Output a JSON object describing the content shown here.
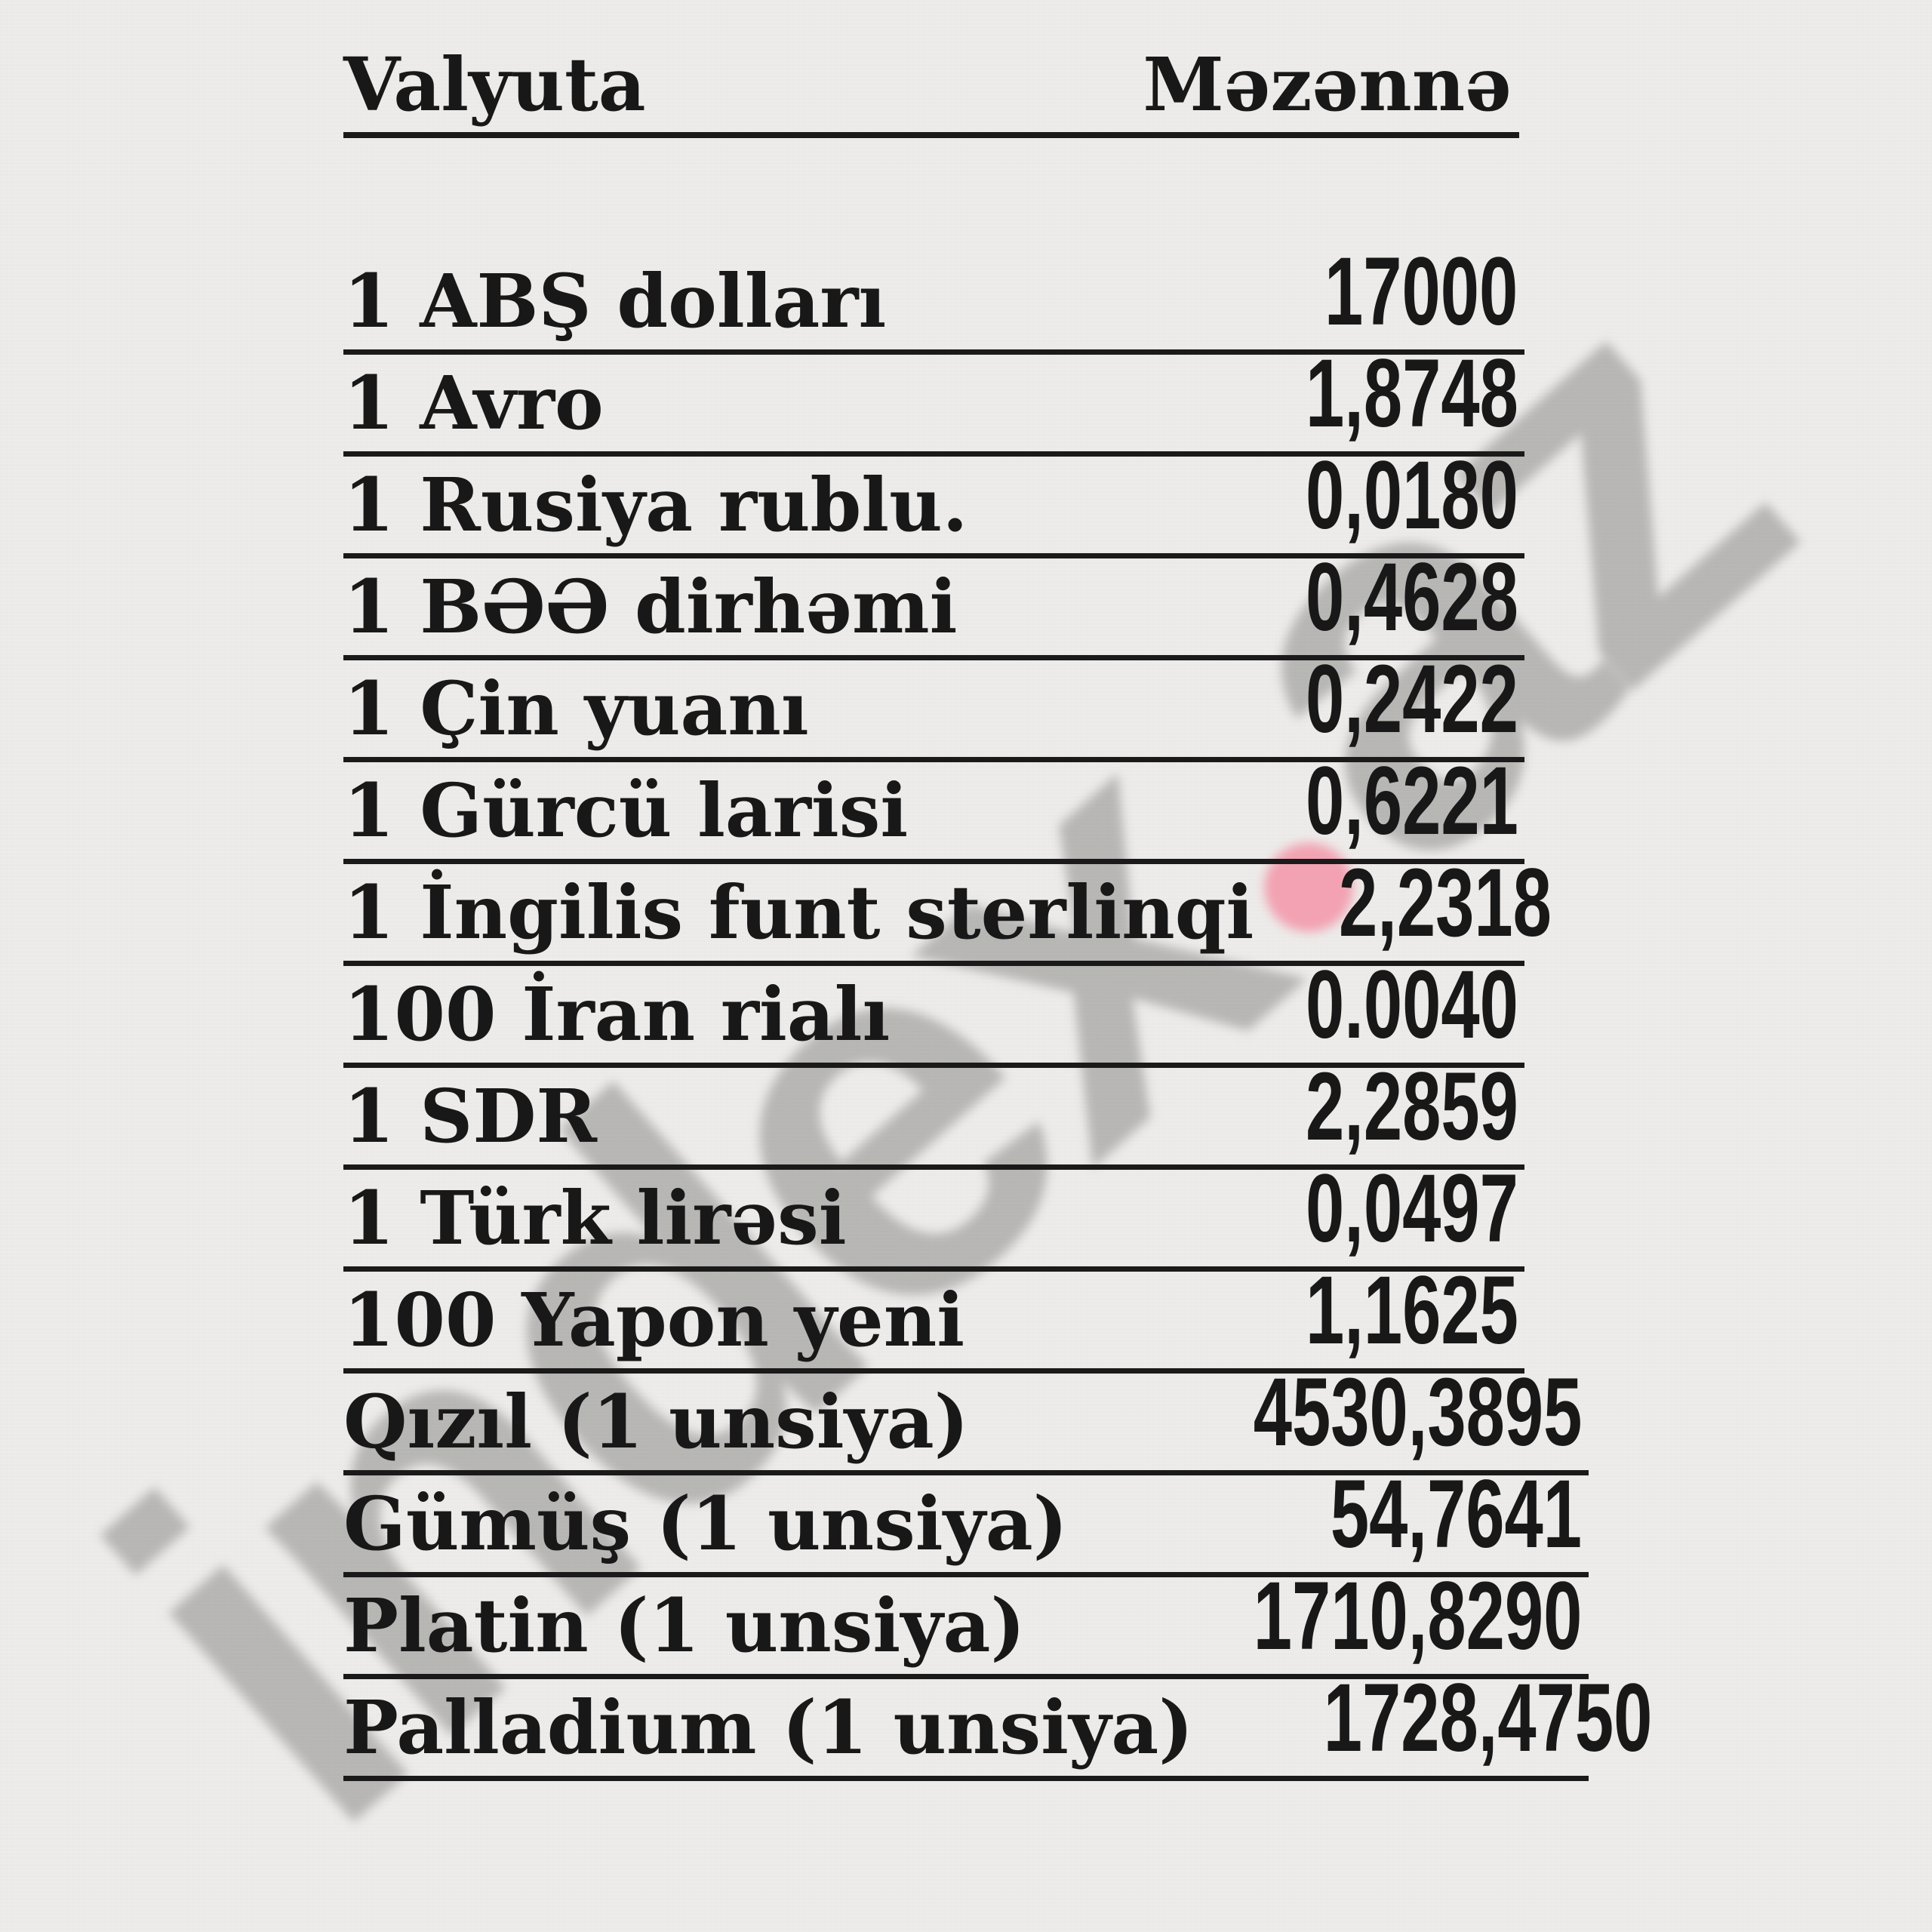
{
  "page": {
    "background": "#eeedeb",
    "text_color": "#1a1a1a"
  },
  "watermark": {
    "text_before_dot": "index",
    "text_after_dot": "az",
    "color": "#8c8c89",
    "dot_color": "#f2a2b2"
  },
  "table": {
    "header": {
      "currency": "Valyuta",
      "rate": "Məzənnə"
    },
    "rows": [
      {
        "label": "1 ABŞ dolları",
        "value": "17000"
      },
      {
        "label": "1 Avro",
        "value": "1,8748"
      },
      {
        "label": "1 Rusiya rublu.",
        "value": "0,0180"
      },
      {
        "label": "1 BƏƏ dirhəmi",
        "value": "0,4628"
      },
      {
        "label": "1 Çin yuanı",
        "value": "0,2422"
      },
      {
        "label": "1 Gürcü larisi",
        "value": "0,6221"
      },
      {
        "label": "1 İngilis funt sterlinqi",
        "value": "2,2318"
      },
      {
        "label": "100 İran rialı",
        "value": "0.0040"
      },
      {
        "label": "1 SDR",
        "value": "2,2859"
      },
      {
        "label": "1 Türk lirəsi",
        "value": "0,0497"
      },
      {
        "label": "100 Yapon yeni",
        "value": "1,1625"
      },
      {
        "label": "Qızıl (1 unsiya)",
        "value": "4530,3895"
      },
      {
        "label": "Gümüş (1 unsiya)",
        "value": "54,7641"
      },
      {
        "label": "Platin (1 unsiya)",
        "value": "1710,8290"
      },
      {
        "label": "Palladium (1 unsiya)",
        "value": "1728,4750"
      }
    ]
  }
}
